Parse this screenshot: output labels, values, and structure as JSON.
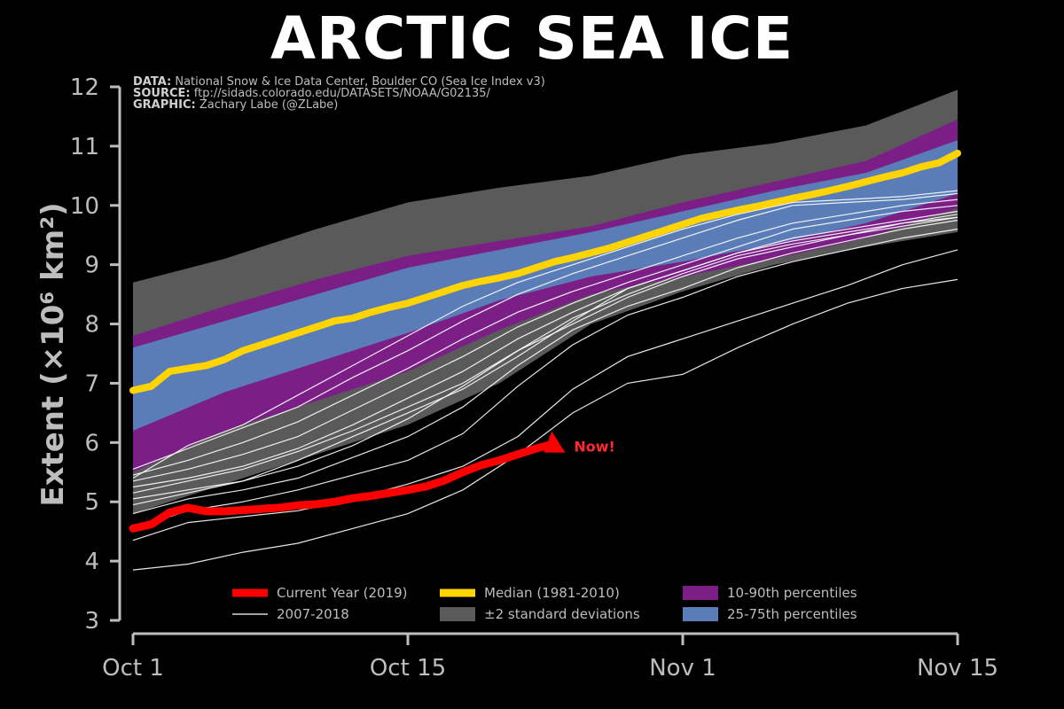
{
  "title": "ARCTIC SEA ICE",
  "credits": [
    {
      "label": "DATA:",
      "text": "National Snow & Ice Data Center, Boulder CO (Sea Ice Index v3)"
    },
    {
      "label": "SOURCE:",
      "text": "ftp://sidads.colorado.edu/DATASETS/NOAA/G02135/"
    },
    {
      "label": "GRAPHIC:",
      "text": "Zachary Labe (@ZLabe)"
    }
  ],
  "ylabel": "Extent (×10⁶ km²)",
  "annotation": "Now!",
  "colors": {
    "current": "#ff0000",
    "median": "#ffd400",
    "std_band": "#5a5a5a",
    "p10_90": "#7b1f87",
    "p25_75": "#5a7db8",
    "years": "#ffffff",
    "axis": "#bdbdbd"
  },
  "chart_data": {
    "type": "line",
    "x_unit": "day since Oct 1",
    "xlim": [
      0,
      45
    ],
    "ylim": [
      3,
      12
    ],
    "xticks": [
      {
        "x": 0,
        "label": "Oct 1"
      },
      {
        "x": 15,
        "label": "Oct 15"
      },
      {
        "x": 30,
        "label": "Nov 1"
      },
      {
        "x": 45,
        "label": "Nov 15"
      }
    ],
    "yticks": [
      3,
      4,
      5,
      6,
      7,
      8,
      9,
      10,
      11,
      12
    ],
    "bands": [
      {
        "name": "±2 standard deviations",
        "color": "#5a5a5a",
        "x": [
          0,
          5,
          10,
          15,
          20,
          25,
          30,
          35,
          40,
          45
        ],
        "upper": [
          8.7,
          9.1,
          9.6,
          10.05,
          10.3,
          10.5,
          10.85,
          11.05,
          11.35,
          11.95
        ],
        "lower": [
          4.8,
          5.3,
          5.8,
          6.3,
          7.0,
          8.0,
          8.55,
          9.0,
          9.3,
          9.55
        ]
      },
      {
        "name": "10-90th percentiles",
        "color": "#7b1f87",
        "x": [
          0,
          5,
          10,
          15,
          20,
          25,
          30,
          35,
          40,
          45
        ],
        "upper": [
          7.8,
          8.3,
          8.75,
          9.15,
          9.4,
          9.65,
          10.05,
          10.4,
          10.75,
          11.45
        ],
        "lower": [
          5.5,
          6.2,
          6.7,
          7.2,
          7.9,
          8.5,
          8.8,
          9.1,
          9.45,
          9.95
        ]
      },
      {
        "name": "25-75th percentiles",
        "color": "#5a7db8",
        "x": [
          0,
          5,
          10,
          15,
          20,
          25,
          30,
          35,
          40,
          45
        ],
        "upper": [
          7.6,
          8.05,
          8.5,
          8.95,
          9.25,
          9.55,
          9.9,
          10.25,
          10.55,
          11.1
        ],
        "lower": [
          6.2,
          6.85,
          7.35,
          7.85,
          8.4,
          8.8,
          9.05,
          9.35,
          9.7,
          10.2
        ]
      }
    ],
    "median": {
      "name": "Median (1981-2010)",
      "color": "#ffd400",
      "x": [
        0,
        1,
        2,
        3,
        4,
        5,
        6,
        7,
        8,
        9,
        10,
        11,
        12,
        13,
        14,
        15,
        16,
        17,
        18,
        19,
        20,
        21,
        22,
        23,
        24,
        25,
        26,
        27,
        28,
        29,
        30,
        31,
        32,
        33,
        34,
        35,
        36,
        37,
        38,
        39,
        40,
        41,
        42,
        43,
        44,
        45
      ],
      "y": [
        6.88,
        6.95,
        7.2,
        7.25,
        7.3,
        7.4,
        7.55,
        7.65,
        7.75,
        7.85,
        7.95,
        8.05,
        8.1,
        8.2,
        8.28,
        8.35,
        8.45,
        8.55,
        8.65,
        8.72,
        8.78,
        8.85,
        8.95,
        9.05,
        9.12,
        9.2,
        9.28,
        9.38,
        9.48,
        9.58,
        9.68,
        9.78,
        9.85,
        9.92,
        9.98,
        10.05,
        10.12,
        10.18,
        10.25,
        10.32,
        10.4,
        10.48,
        10.55,
        10.65,
        10.72,
        10.88
      ]
    },
    "years_label": "2007-2018",
    "years": [
      {
        "x": [
          0,
          3,
          6,
          9,
          12,
          15,
          18,
          21,
          24,
          27,
          30,
          33,
          36,
          39,
          42,
          45
        ],
        "y": [
          3.85,
          3.95,
          4.15,
          4.3,
          4.55,
          4.8,
          5.2,
          5.8,
          6.5,
          7.0,
          7.15,
          7.6,
          8.0,
          8.35,
          8.6,
          8.75
        ]
      },
      {
        "x": [
          0,
          3,
          6,
          9,
          12,
          15,
          18,
          21,
          24,
          27,
          30,
          33,
          36,
          39,
          42,
          45
        ],
        "y": [
          4.35,
          4.65,
          4.75,
          4.85,
          5.05,
          5.3,
          5.6,
          6.1,
          6.9,
          7.45,
          7.75,
          8.05,
          8.35,
          8.65,
          9.0,
          9.25
        ]
      },
      {
        "x": [
          0,
          3,
          6,
          9,
          12,
          15,
          18,
          21,
          24,
          27,
          30,
          33,
          36,
          39,
          42,
          45
        ],
        "y": [
          4.55,
          4.85,
          5.0,
          5.2,
          5.45,
          5.7,
          6.15,
          6.95,
          7.65,
          8.15,
          8.45,
          8.8,
          9.05,
          9.25,
          9.45,
          9.6
        ]
      },
      {
        "x": [
          0,
          3,
          6,
          9,
          12,
          15,
          18,
          21,
          24,
          27,
          30,
          33,
          36,
          39,
          42,
          45
        ],
        "y": [
          4.8,
          5.05,
          5.2,
          5.4,
          5.75,
          6.1,
          6.6,
          7.3,
          7.9,
          8.3,
          8.6,
          8.95,
          9.2,
          9.4,
          9.6,
          9.75
        ]
      },
      {
        "x": [
          0,
          3,
          6,
          9,
          12,
          15,
          18,
          21,
          24,
          27,
          30,
          33,
          36,
          39,
          42,
          45
        ],
        "y": [
          4.95,
          5.15,
          5.35,
          5.6,
          5.95,
          6.4,
          6.95,
          7.55,
          8.0,
          8.45,
          8.8,
          9.1,
          9.3,
          9.5,
          9.7,
          9.85
        ]
      },
      {
        "x": [
          0,
          3,
          6,
          9,
          12,
          15,
          18,
          21,
          24,
          27,
          30,
          33,
          36,
          39,
          42,
          45
        ],
        "y": [
          5.05,
          5.2,
          5.35,
          5.7,
          6.1,
          6.5,
          6.9,
          7.45,
          8.05,
          8.6,
          8.9,
          9.2,
          9.4,
          9.55,
          9.7,
          9.8
        ]
      },
      {
        "x": [
          0,
          3,
          6,
          9,
          12,
          15,
          18,
          21,
          24,
          27,
          30,
          33,
          36,
          39,
          42,
          45
        ],
        "y": [
          5.15,
          5.35,
          5.55,
          5.85,
          6.2,
          6.6,
          7.0,
          7.55,
          8.1,
          8.5,
          8.85,
          9.15,
          9.35,
          9.5,
          9.65,
          9.8
        ]
      },
      {
        "x": [
          0,
          3,
          6,
          9,
          12,
          15,
          18,
          21,
          24,
          27,
          30,
          33,
          36,
          39,
          42,
          45
        ],
        "y": [
          5.25,
          5.4,
          5.6,
          5.9,
          6.3,
          6.75,
          7.2,
          7.75,
          8.2,
          8.6,
          8.9,
          9.2,
          9.45,
          9.6,
          9.75,
          9.9
        ]
      },
      {
        "x": [
          0,
          3,
          6,
          9,
          12,
          15,
          18,
          21,
          24,
          27,
          30,
          33,
          36,
          39,
          42,
          45
        ],
        "y": [
          5.35,
          5.55,
          5.8,
          6.1,
          6.55,
          7.0,
          7.45,
          7.95,
          8.35,
          8.7,
          9.0,
          9.3,
          9.6,
          9.75,
          9.9,
          10.0
        ]
      },
      {
        "x": [
          0,
          3,
          6,
          9,
          12,
          15,
          18,
          21,
          24,
          27,
          30,
          33,
          36,
          39,
          42,
          45
        ],
        "y": [
          5.45,
          5.7,
          6.0,
          6.35,
          6.8,
          7.25,
          7.75,
          8.2,
          8.55,
          8.85,
          9.15,
          9.45,
          9.7,
          9.85,
          10.0,
          10.1
        ]
      },
      {
        "x": [
          0,
          3,
          6,
          9,
          12,
          15,
          18,
          21,
          24,
          27,
          30,
          33,
          36,
          39,
          42,
          45
        ],
        "y": [
          5.55,
          5.9,
          6.25,
          6.6,
          7.1,
          7.55,
          8.05,
          8.5,
          8.85,
          9.15,
          9.45,
          9.75,
          10.0,
          10.05,
          10.1,
          10.2
        ]
      },
      {
        "x": [
          0,
          3,
          6,
          9,
          12,
          15,
          18,
          21,
          24,
          27,
          30,
          33,
          36,
          39,
          42,
          45
        ],
        "y": [
          5.4,
          5.95,
          6.3,
          6.8,
          7.3,
          7.8,
          8.3,
          8.7,
          9.0,
          9.3,
          9.6,
          9.85,
          10.05,
          10.1,
          10.15,
          10.25
        ]
      }
    ],
    "current": {
      "name": "Current Year (2019)",
      "color": "#ff0000",
      "x": [
        0,
        1,
        2,
        3,
        4,
        5,
        6,
        7,
        8,
        9,
        10,
        11,
        12,
        13,
        14,
        15,
        16,
        17,
        18,
        19,
        20,
        21,
        22,
        23
      ],
      "y": [
        4.55,
        4.62,
        4.82,
        4.9,
        4.84,
        4.84,
        4.86,
        4.88,
        4.9,
        4.94,
        4.96,
        5.0,
        5.06,
        5.1,
        5.15,
        5.2,
        5.26,
        5.36,
        5.5,
        5.62,
        5.7,
        5.8,
        5.9,
        5.98
      ]
    },
    "legend": [
      {
        "label": "Current Year (2019)",
        "kind": "line",
        "color": "#ff0000"
      },
      {
        "label": "2007-2018",
        "kind": "thin",
        "color": "#ffffff"
      },
      {
        "label": "Median (1981-2010)",
        "kind": "line",
        "color": "#ffd400"
      },
      {
        "label": "±2 standard deviations",
        "kind": "patch",
        "color": "#5a5a5a"
      },
      {
        "label": "10-90th percentiles",
        "kind": "patch",
        "color": "#7b1f87"
      },
      {
        "label": "25-75th percentiles",
        "kind": "patch",
        "color": "#5a7db8"
      }
    ]
  }
}
